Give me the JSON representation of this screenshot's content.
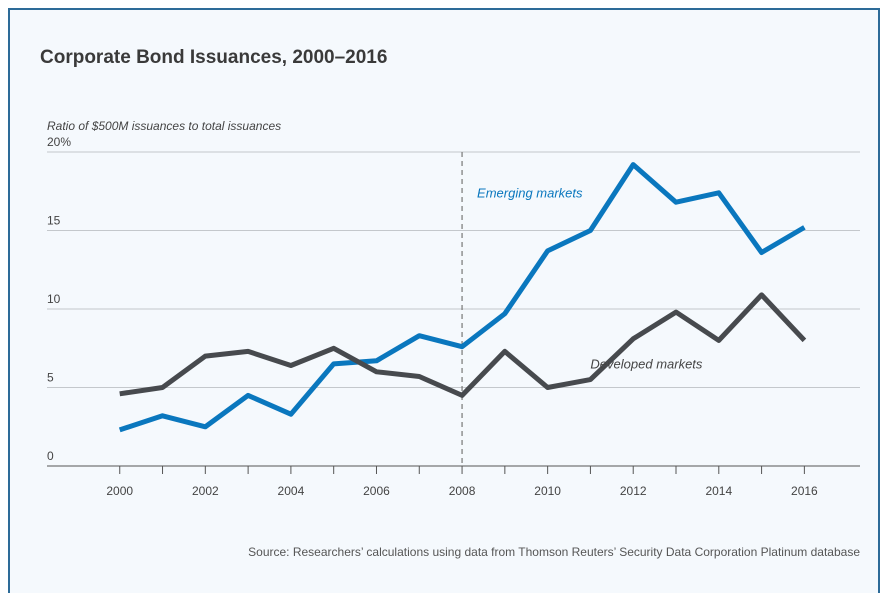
{
  "title": "Corporate Bond Issuances, 2000–2016",
  "source": "Source: Researchers’ calculations using data from Thomson Reuters’ Security Data Corporation Platinum database",
  "chart_data": {
    "type": "line",
    "title": "Corporate Bond Issuances, 2000–2016",
    "ylabel": "Ratio of $500M issuances to total issuances",
    "xlabel": "",
    "x": [
      2000,
      2001,
      2002,
      2003,
      2004,
      2005,
      2006,
      2007,
      2008,
      2009,
      2010,
      2011,
      2012,
      2013,
      2014,
      2015,
      2016
    ],
    "xlim": [
      1998.3,
      2017.3
    ],
    "ylim": [
      0,
      20
    ],
    "x_tick_values": [
      2000,
      2002,
      2004,
      2006,
      2008,
      2010,
      2012,
      2014,
      2016
    ],
    "x_tick_labels": [
      "2000",
      "2002",
      "2004",
      "2006",
      "2008",
      "2010",
      "2012",
      "2014",
      "2016"
    ],
    "y_tick_values": [
      0,
      5,
      10,
      15,
      20
    ],
    "y_tick_labels": [
      "0",
      "5",
      "10",
      "15",
      "20%"
    ],
    "reference_line_x": 2008,
    "grid": "horizontal",
    "series": [
      {
        "name": "Emerging markets",
        "color": "#0a77be",
        "values": [
          2.3,
          3.2,
          2.5,
          4.5,
          3.3,
          6.5,
          6.7,
          8.3,
          7.6,
          9.7,
          13.7,
          15.0,
          19.2,
          16.8,
          17.4,
          13.6,
          15.2
        ]
      },
      {
        "name": "Developed markets",
        "color": "#474a4e",
        "values": [
          4.6,
          5.0,
          7.0,
          7.3,
          6.4,
          7.5,
          6.0,
          5.7,
          4.5,
          7.3,
          5.0,
          5.5,
          8.1,
          9.8,
          8.0,
          10.9,
          8.0
        ]
      }
    ]
  }
}
